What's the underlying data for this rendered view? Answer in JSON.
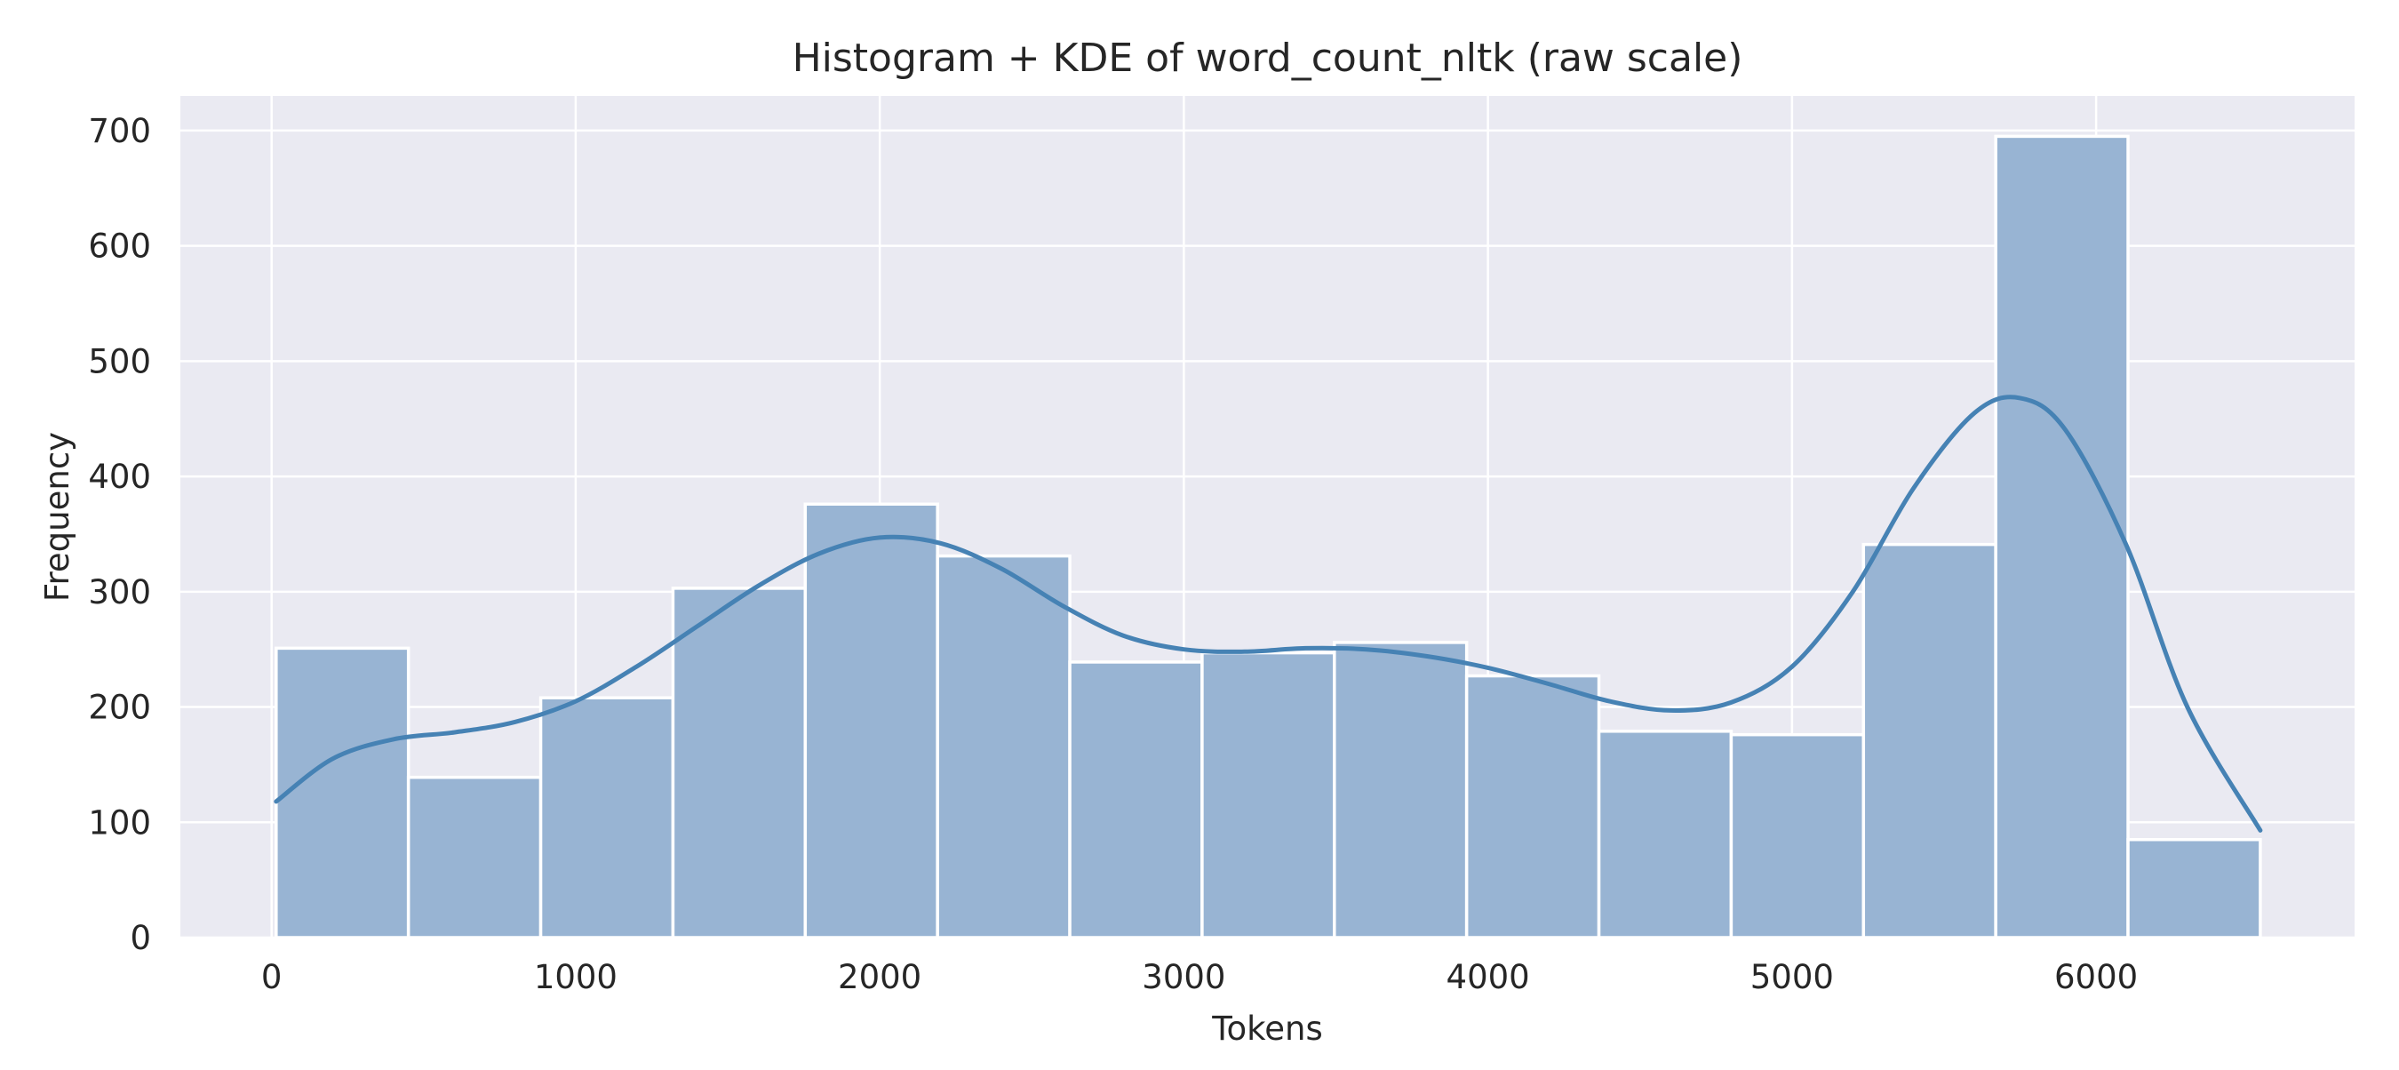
{
  "chart_data": {
    "type": "bar",
    "title": "Histogram + KDE of word_count_nltk (raw scale)",
    "xlabel": "Tokens",
    "ylabel": "Frequency",
    "xlim": [
      -300,
      6850
    ],
    "ylim": [
      0,
      730
    ],
    "x_ticks": [
      0,
      1000,
      2000,
      3000,
      4000,
      5000,
      6000
    ],
    "y_ticks": [
      0,
      100,
      200,
      300,
      400,
      500,
      600,
      700
    ],
    "grid": true,
    "bins": [
      {
        "x0": 15,
        "x1": 450,
        "value": 251
      },
      {
        "x0": 450,
        "x1": 885,
        "value": 139
      },
      {
        "x0": 885,
        "x1": 1320,
        "value": 208
      },
      {
        "x0": 1320,
        "x1": 1755,
        "value": 303
      },
      {
        "x0": 1755,
        "x1": 2190,
        "value": 376
      },
      {
        "x0": 2190,
        "x1": 2625,
        "value": 331
      },
      {
        "x0": 2625,
        "x1": 3060,
        "value": 239
      },
      {
        "x0": 3060,
        "x1": 3495,
        "value": 247
      },
      {
        "x0": 3495,
        "x1": 3930,
        "value": 256
      },
      {
        "x0": 3930,
        "x1": 4365,
        "value": 227
      },
      {
        "x0": 4365,
        "x1": 4800,
        "value": 179
      },
      {
        "x0": 4800,
        "x1": 5235,
        "value": 176
      },
      {
        "x0": 5235,
        "x1": 5670,
        "value": 341
      },
      {
        "x0": 5670,
        "x1": 6105,
        "value": 695
      },
      {
        "x0": 6105,
        "x1": 6540,
        "value": 85
      }
    ],
    "kde": {
      "x": [
        15,
        200,
        400,
        600,
        800,
        1000,
        1200,
        1400,
        1600,
        1800,
        2000,
        2200,
        2400,
        2600,
        2800,
        3000,
        3200,
        3400,
        3600,
        3800,
        4000,
        4200,
        4400,
        4600,
        4800,
        5000,
        5200,
        5400,
        5600,
        5750,
        5900,
        6100,
        6300,
        6540
      ],
      "y": [
        118,
        155,
        172,
        178,
        187,
        205,
        235,
        270,
        305,
        333,
        347,
        342,
        320,
        288,
        262,
        250,
        248,
        251,
        250,
        244,
        234,
        220,
        205,
        197,
        204,
        235,
        300,
        390,
        455,
        468,
        440,
        340,
        200,
        93
      ]
    },
    "colors": {
      "bar_fill": "#98b4d3",
      "bar_edge": "#ffffff",
      "kde_line": "#4682b4",
      "plot_background": "#eaeaf2",
      "grid": "#ffffff"
    }
  }
}
